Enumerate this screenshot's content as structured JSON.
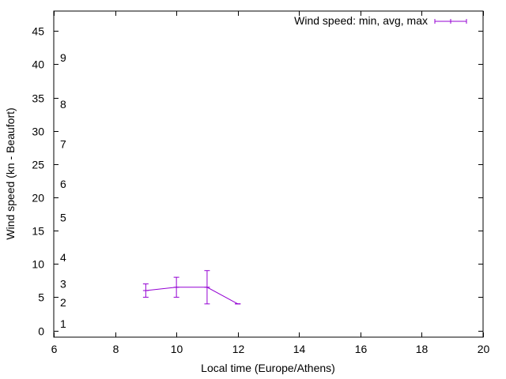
{
  "chart_data": {
    "type": "line",
    "title": "",
    "xlabel": "Local time (Europe/Athens)",
    "ylabel": "Wind speed (kn - Beaufort)",
    "xlim": [
      6,
      20
    ],
    "ylim": [
      -1,
      48
    ],
    "xticks": [
      6,
      8,
      10,
      12,
      14,
      16,
      18,
      20
    ],
    "yticks": [
      0,
      5,
      10,
      15,
      20,
      25,
      30,
      35,
      40,
      45
    ],
    "grid": false,
    "legend_position": "top-right",
    "beaufort_labels": [
      {
        "label": "1",
        "y": 1
      },
      {
        "label": "2",
        "y": 4.2
      },
      {
        "label": "3",
        "y": 7
      },
      {
        "label": "4",
        "y": 11
      },
      {
        "label": "5",
        "y": 17
      },
      {
        "label": "6",
        "y": 22
      },
      {
        "label": "7",
        "y": 28
      },
      {
        "label": "8",
        "y": 34
      },
      {
        "label": "9",
        "y": 41
      }
    ],
    "series": [
      {
        "name": "Wind speed: min, avg, max",
        "color": "#9400d3",
        "x": [
          9,
          10,
          11,
          12
        ],
        "avg": [
          6,
          6.5,
          6.5,
          4
        ],
        "min": [
          5,
          5,
          4,
          4
        ],
        "max": [
          7,
          8,
          9,
          4
        ]
      }
    ]
  }
}
